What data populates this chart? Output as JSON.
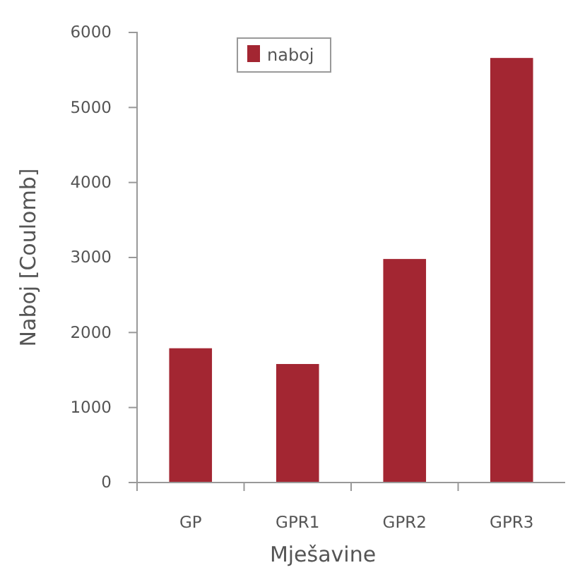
{
  "chart_data": {
    "type": "bar",
    "xlabel": "Mješavine",
    "ylabel": "Naboj [Coulomb]",
    "categories": [
      "GP",
      "GPR1",
      "GPR2",
      "GPR3"
    ],
    "series": [
      {
        "name": "naboj",
        "color": "#a32632",
        "values": [
          1790,
          1580,
          2980,
          5660
        ]
      }
    ],
    "ylim": [
      0,
      6000
    ],
    "yticks": [
      0,
      1000,
      2000,
      3000,
      4000,
      5000,
      6000
    ],
    "grid": false,
    "legend": "top"
  }
}
